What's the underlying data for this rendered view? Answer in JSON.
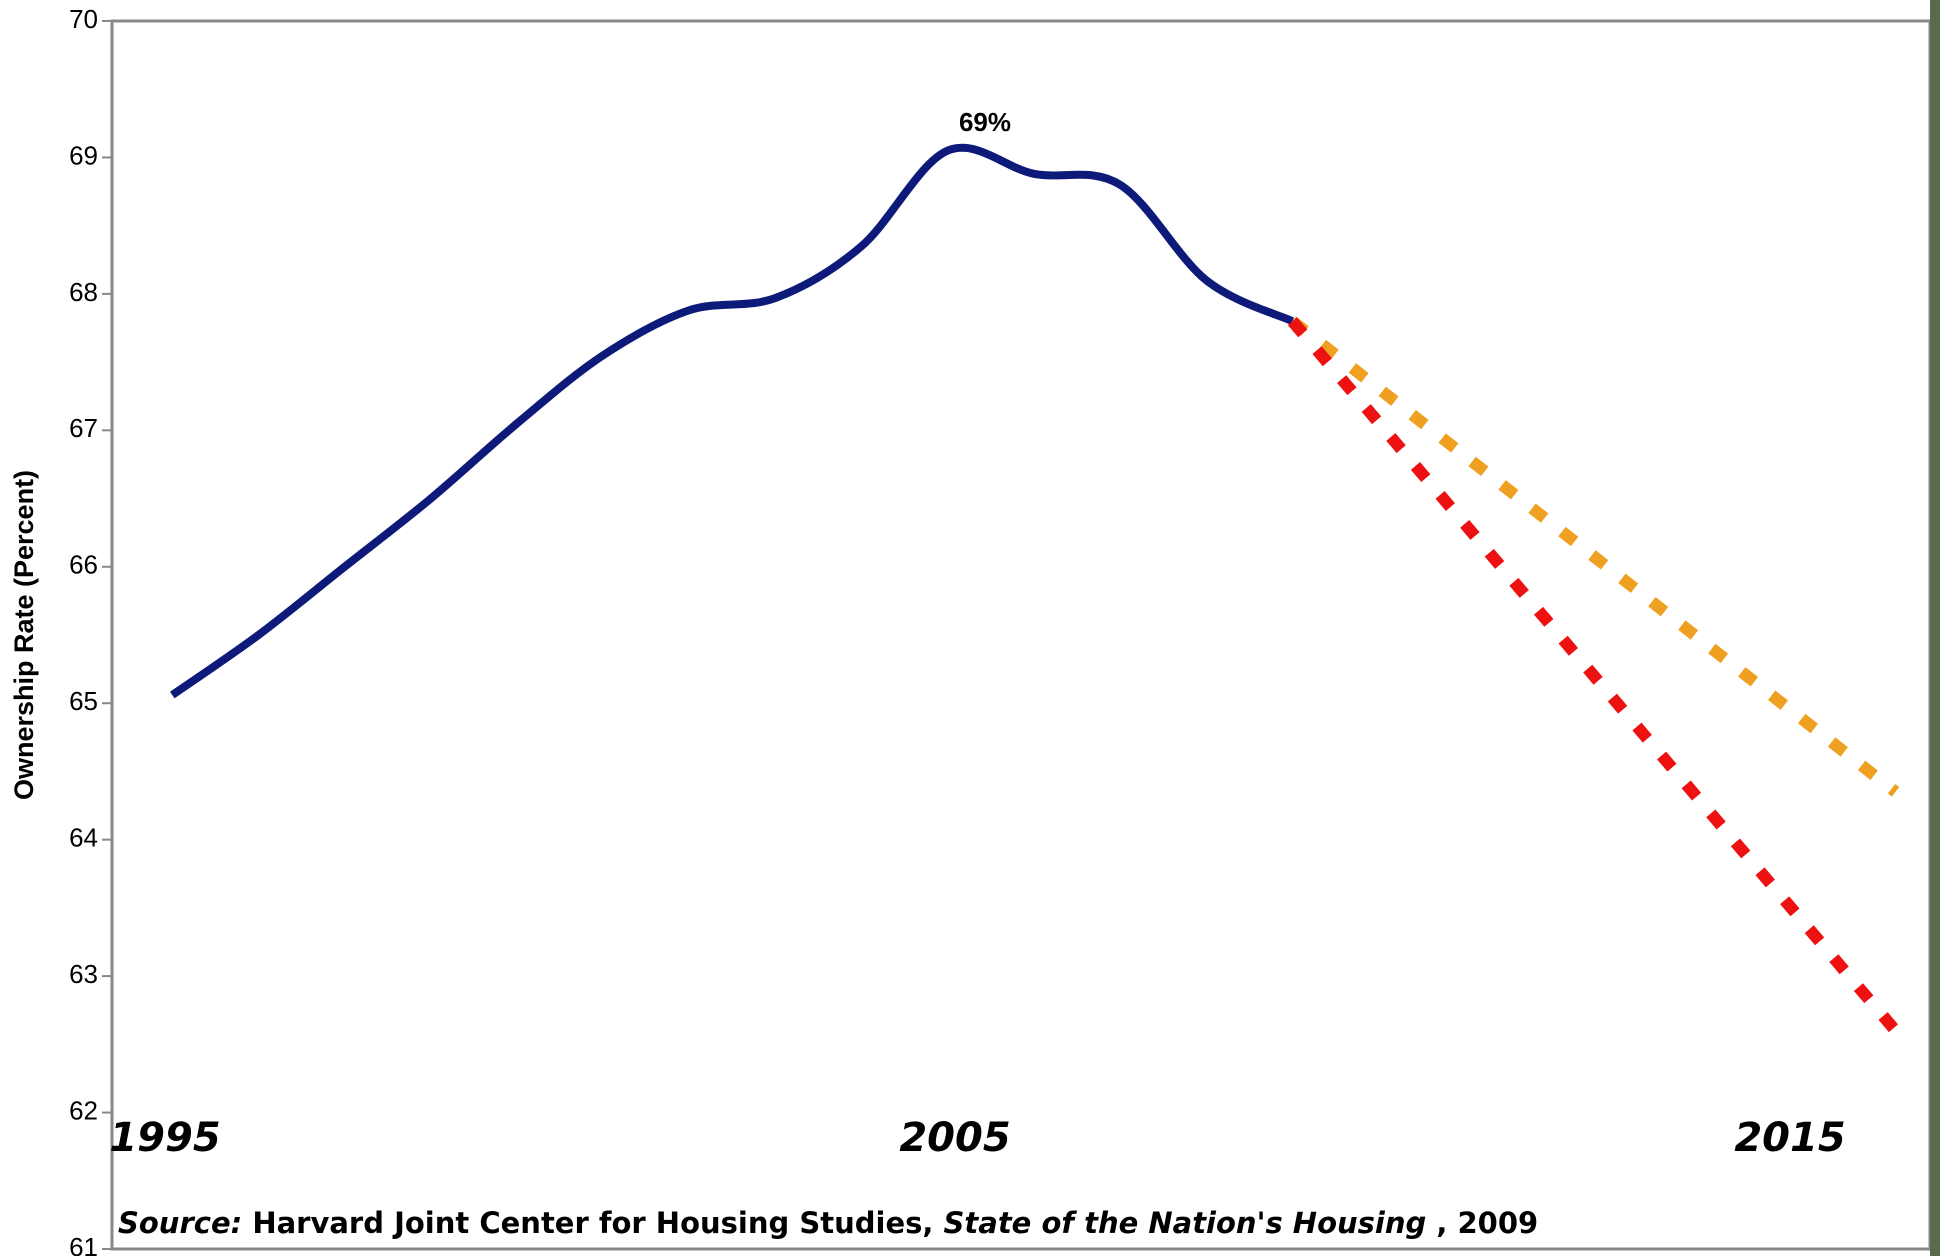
{
  "chart_data": {
    "type": "line",
    "y_label": "Ownership Rate (Percent)",
    "xlim": [
      1994.3,
      2015.4
    ],
    "ylim": [
      61,
      70
    ],
    "yticks": [
      61,
      62,
      63,
      64,
      65,
      66,
      67,
      68,
      69,
      70
    ],
    "series": [
      {
        "color": "#0d1a7a",
        "dashed": false,
        "x": [
          1995,
          1996,
          1997,
          1998,
          1999,
          2000,
          2001,
          2002,
          2003,
          2004,
          2005,
          2006,
          2007,
          2008
        ],
        "values": [
          65.06,
          65.5,
          66.0,
          66.5,
          67.05,
          67.55,
          67.88,
          67.97,
          68.35,
          69.05,
          68.88,
          68.8,
          68.1,
          67.8
        ]
      },
      {
        "color": "#f0a020",
        "dashed": true,
        "x": [
          2008,
          2015
        ],
        "values": [
          67.8,
          64.35
        ]
      },
      {
        "color": "#ee1111",
        "dashed": true,
        "x": [
          2008,
          2015
        ],
        "values": [
          67.8,
          62.6
        ]
      }
    ],
    "annotations": [
      "69%",
      "1995",
      "2005",
      "2015"
    ],
    "source": [
      "Source:",
      " Harvard Joint Center for Housing Studies, ",
      "State of the Nation's Housing",
      " , 2009"
    ]
  }
}
